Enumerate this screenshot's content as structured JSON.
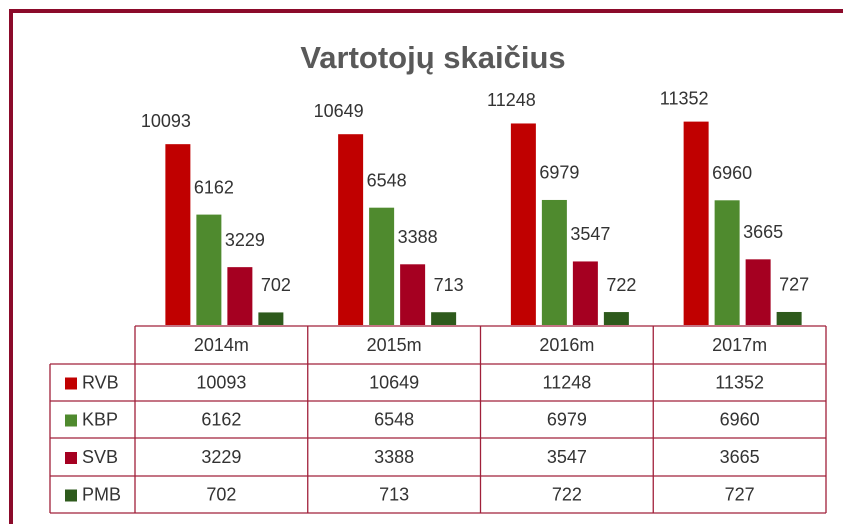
{
  "chart_data": {
    "type": "bar",
    "title": "Vartotojų skaičius",
    "categories": [
      "2014m",
      "2015m",
      "2016m",
      "2017m"
    ],
    "series": [
      {
        "name": "RVB",
        "color": "#c00000",
        "values": [
          10093,
          10649,
          11248,
          11352
        ]
      },
      {
        "name": "KBP",
        "color": "#4f8a2e",
        "values": [
          6162,
          6548,
          6979,
          6960
        ]
      },
      {
        "name": "SVB",
        "color": "#a50021",
        "values": [
          3229,
          3388,
          3547,
          3665
        ]
      },
      {
        "name": "PMB",
        "color": "#2e5a1c",
        "values": [
          702,
          713,
          722,
          727
        ]
      }
    ],
    "ylim": [
      0,
      12000
    ],
    "data_table": true
  }
}
